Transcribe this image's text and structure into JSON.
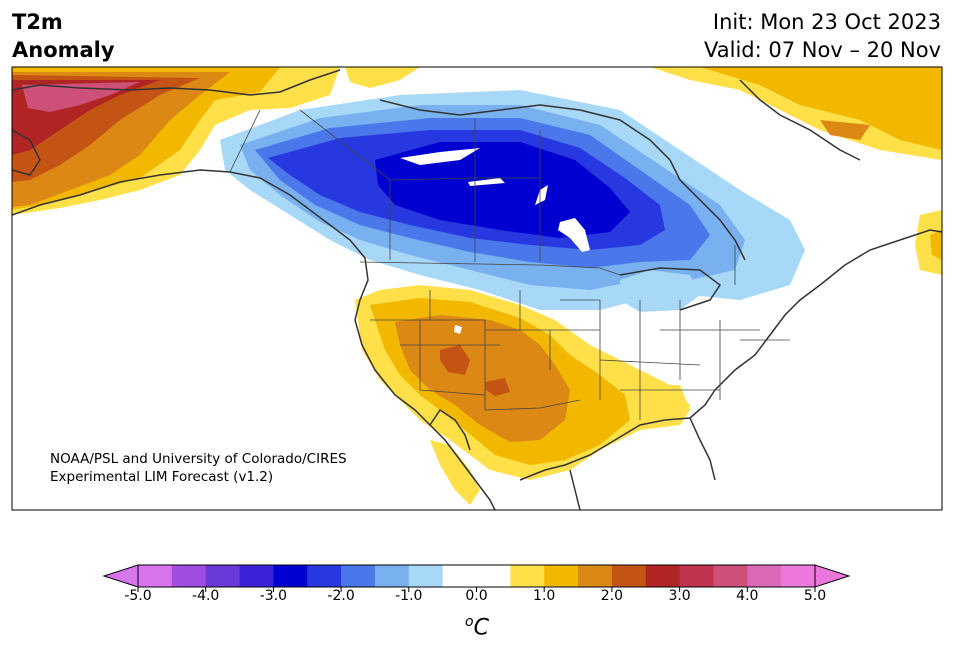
{
  "header": {
    "variable_line1": "T2m",
    "variable_line2": "Anomaly",
    "init_text": "Init: Mon 23 Oct 2023",
    "valid_text": "Valid: 07 Nov – 20 Nov"
  },
  "credit": {
    "line1": "NOAA/PSL and University of Colorado/CIRES",
    "line2": "Experimental LIM Forecast (v1.2)"
  },
  "colorbar": {
    "tick_labels": [
      "-5.0",
      "-4.0",
      "-3.0",
      "-2.0",
      "-1.0",
      "0.0",
      "1.0",
      "2.0",
      "3.0",
      "4.0",
      "5.0"
    ],
    "unit_base": "C",
    "unit_sup": "o",
    "colors": [
      "#d874ec",
      "#a04ee0",
      "#6a3ad8",
      "#3a22d8",
      "#0000d0",
      "#2838e0",
      "#4a78ea",
      "#78b0f0",
      "#a8d8f8",
      "#ffffff",
      "#ffffff",
      "#ffe048",
      "#f2b800",
      "#dc8814",
      "#c45414",
      "#b02424",
      "#c03450",
      "#cc5078",
      "#dc68b8",
      "#ec78dc"
    ]
  }
}
